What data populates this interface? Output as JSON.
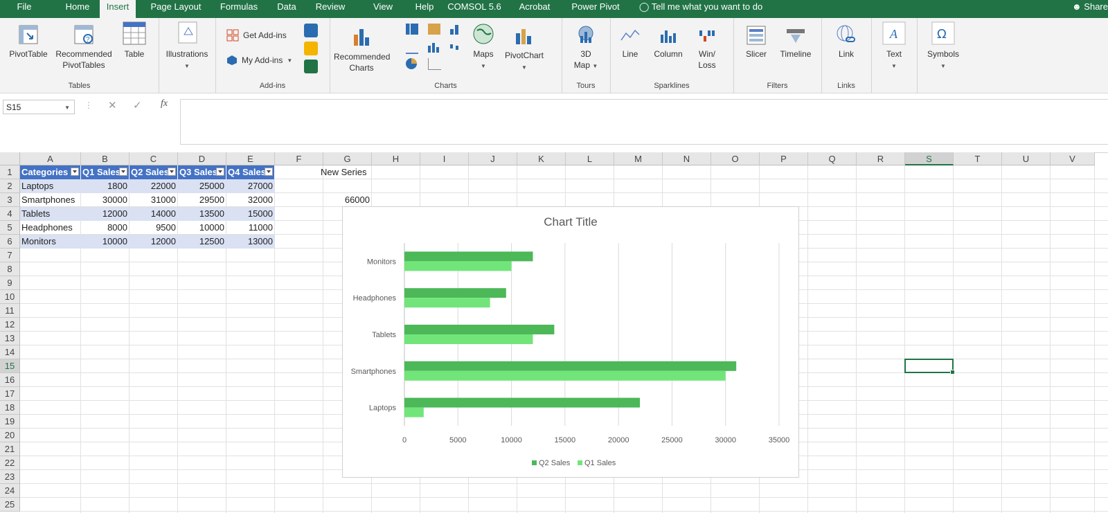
{
  "menu": {
    "tabs": [
      "File",
      "Home",
      "Insert",
      "Page Layout",
      "Formulas",
      "Data",
      "Review",
      "View",
      "Help",
      "COMSOL 5.6",
      "Acrobat",
      "Power Pivot"
    ],
    "active": "Insert",
    "tell_me": "Tell me what you want to do",
    "share": "Share"
  },
  "ribbon": {
    "groups": {
      "tables": "Tables",
      "addins": "Add-ins",
      "charts": "Charts",
      "tours": "Tours",
      "sparklines": "Sparklines",
      "filters": "Filters",
      "links": "Links"
    },
    "buttons": {
      "pivottable": "PivotTable",
      "rec_pivot_1": "Recommended",
      "rec_pivot_2": "PivotTables",
      "table": "Table",
      "illustrations": "Illustrations",
      "get_addins": "Get Add-ins",
      "my_addins": "My Add-ins",
      "rec_charts_1": "Recommended",
      "rec_charts_2": "Charts",
      "maps": "Maps",
      "pivotchart": "PivotChart",
      "map3d_1": "3D",
      "map3d_2": "Map",
      "line": "Line",
      "column": "Column",
      "winloss_1": "Win/",
      "winloss_2": "Loss",
      "slicer": "Slicer",
      "timeline": "Timeline",
      "link": "Link",
      "text": "Text",
      "symbols": "Symbols"
    }
  },
  "formula_bar": {
    "name_box": "S15",
    "fx": "fx",
    "value": ""
  },
  "sheet": {
    "columns": [
      "A",
      "B",
      "C",
      "D",
      "E",
      "F",
      "G",
      "H",
      "I",
      "J",
      "K",
      "L",
      "M",
      "N",
      "O",
      "P",
      "Q",
      "R",
      "S",
      "T",
      "U",
      "V"
    ],
    "rows": [
      "1",
      "2",
      "3",
      "4",
      "5",
      "6",
      "7",
      "8",
      "9",
      "10",
      "11",
      "12",
      "13",
      "14",
      "15",
      "16",
      "17",
      "18",
      "19",
      "20",
      "21",
      "22",
      "23",
      "24",
      "25"
    ],
    "selected_col": "S",
    "selected_row": "15",
    "table_headers": [
      "Categories",
      "Q1 Sales",
      "Q2 Sales",
      "Q3 Sales",
      "Q4 Sales"
    ],
    "table_rows": [
      [
        "Laptops",
        "1800",
        "22000",
        "25000",
        "27000"
      ],
      [
        "Smartphones",
        "30000",
        "31000",
        "29500",
        "32000"
      ],
      [
        "Tablets",
        "12000",
        "14000",
        "13500",
        "15000"
      ],
      [
        "Headphones",
        "8000",
        "9500",
        "10000",
        "11000"
      ],
      [
        "Monitors",
        "10000",
        "12000",
        "12500",
        "13000"
      ]
    ],
    "g1": "New Series",
    "g3": "66000"
  },
  "chart_data": {
    "type": "bar",
    "orientation": "horizontal",
    "title": "Chart Title",
    "categories": [
      "Laptops",
      "Smartphones",
      "Tablets",
      "Headphones",
      "Monitors"
    ],
    "series": [
      {
        "name": "Q2 Sales",
        "values": [
          22000,
          31000,
          14000,
          9500,
          12000
        ],
        "color": "#4cb858"
      },
      {
        "name": "Q1 Sales",
        "values": [
          1800,
          30000,
          12000,
          8000,
          10000
        ],
        "color": "#72e57a"
      }
    ],
    "xlim": [
      0,
      35000
    ],
    "x_ticks": [
      0,
      5000,
      10000,
      15000,
      20000,
      25000,
      30000,
      35000
    ],
    "grid": true,
    "legend": "bottom"
  },
  "colors": {
    "excel_green": "#217346",
    "table_header": "#4472c4",
    "table_band": "#d9e1f2"
  }
}
